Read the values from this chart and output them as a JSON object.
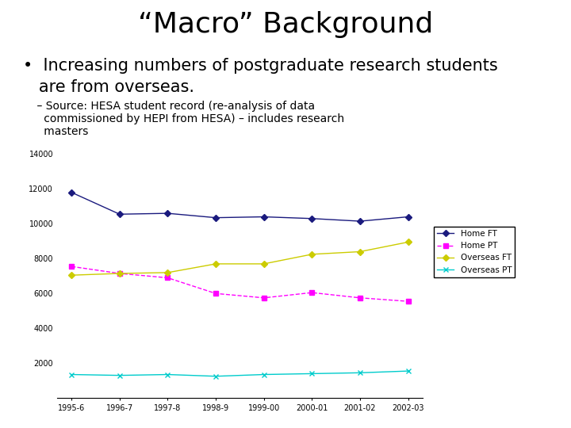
{
  "title": "“Macro” Background",
  "bullet_line1": "•  Increasing numbers of postgraduate research students",
  "bullet_line2": "   are from overseas.",
  "source_line1": "    – Source: HESA student record (re-analysis of data",
  "source_line2": "      commissioned by HEPI from HESA) – includes research",
  "source_line3": "      masters",
  "x_labels": [
    "1995-6",
    "1996-7",
    "1997-8",
    "1998-9",
    "1999-00",
    "2000-01",
    "2001-02",
    "2002-03"
  ],
  "series": [
    {
      "label": "Home FT",
      "color": "#1a1a7e",
      "marker": "D",
      "markersize": 4,
      "linestyle": "-",
      "values": [
        11800,
        10550,
        10600,
        10350,
        10400,
        10300,
        10150,
        10400
      ]
    },
    {
      "label": "Home PT",
      "color": "#ff00ff",
      "marker": "s",
      "markersize": 4,
      "linestyle": "--",
      "values": [
        7550,
        7150,
        6900,
        6000,
        5750,
        6050,
        5750,
        5550
      ]
    },
    {
      "label": "Overseas FT",
      "color": "#cccc00",
      "marker": "D",
      "markersize": 4,
      "linestyle": "-",
      "values": [
        7050,
        7150,
        7200,
        7700,
        7700,
        8250,
        8400,
        8950
      ]
    },
    {
      "label": "Overseas PT",
      "color": "#00cccc",
      "marker": "x",
      "markersize": 5,
      "linestyle": "-",
      "values": [
        1350,
        1300,
        1350,
        1250,
        1350,
        1400,
        1450,
        1550
      ]
    }
  ],
  "ylim": [
    0,
    14000
  ],
  "yticks": [
    0,
    2000,
    4000,
    6000,
    8000,
    10000,
    12000,
    14000
  ],
  "background_color": "#ffffff",
  "title_fontsize": 26,
  "bullet_fontsize": 15,
  "source_fontsize": 10
}
